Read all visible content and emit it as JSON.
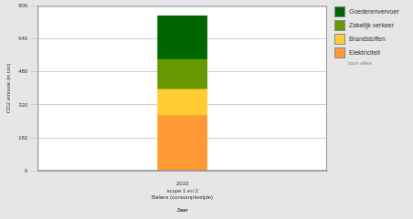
{
  "chart_data": {
    "type": "bar",
    "stacked": true,
    "categories": [
      "2010\nscope 1 en 2\nBalans (consumptiezijde)"
    ],
    "x_label": "Jaar",
    "y_label": "CO2 emissie (in ton)",
    "series": [
      {
        "name": "Elektriciteit",
        "color": "#ff9933",
        "values": [
          268
        ]
      },
      {
        "name": "Brandstoffen",
        "color": "#ffcc33",
        "values": [
          128
        ]
      },
      {
        "name": "Zakelijk verkeer",
        "color": "#669900",
        "values": [
          145
        ]
      },
      {
        "name": "Goederenvervoer",
        "color": "#006600",
        "values": [
          211
        ]
      }
    ],
    "ylim": [
      0,
      800
    ],
    "yticks": [
      0,
      160,
      320,
      480,
      640,
      800
    ],
    "grid": true,
    "legend": "right",
    "annotations": [
      "toon alles"
    ]
  }
}
